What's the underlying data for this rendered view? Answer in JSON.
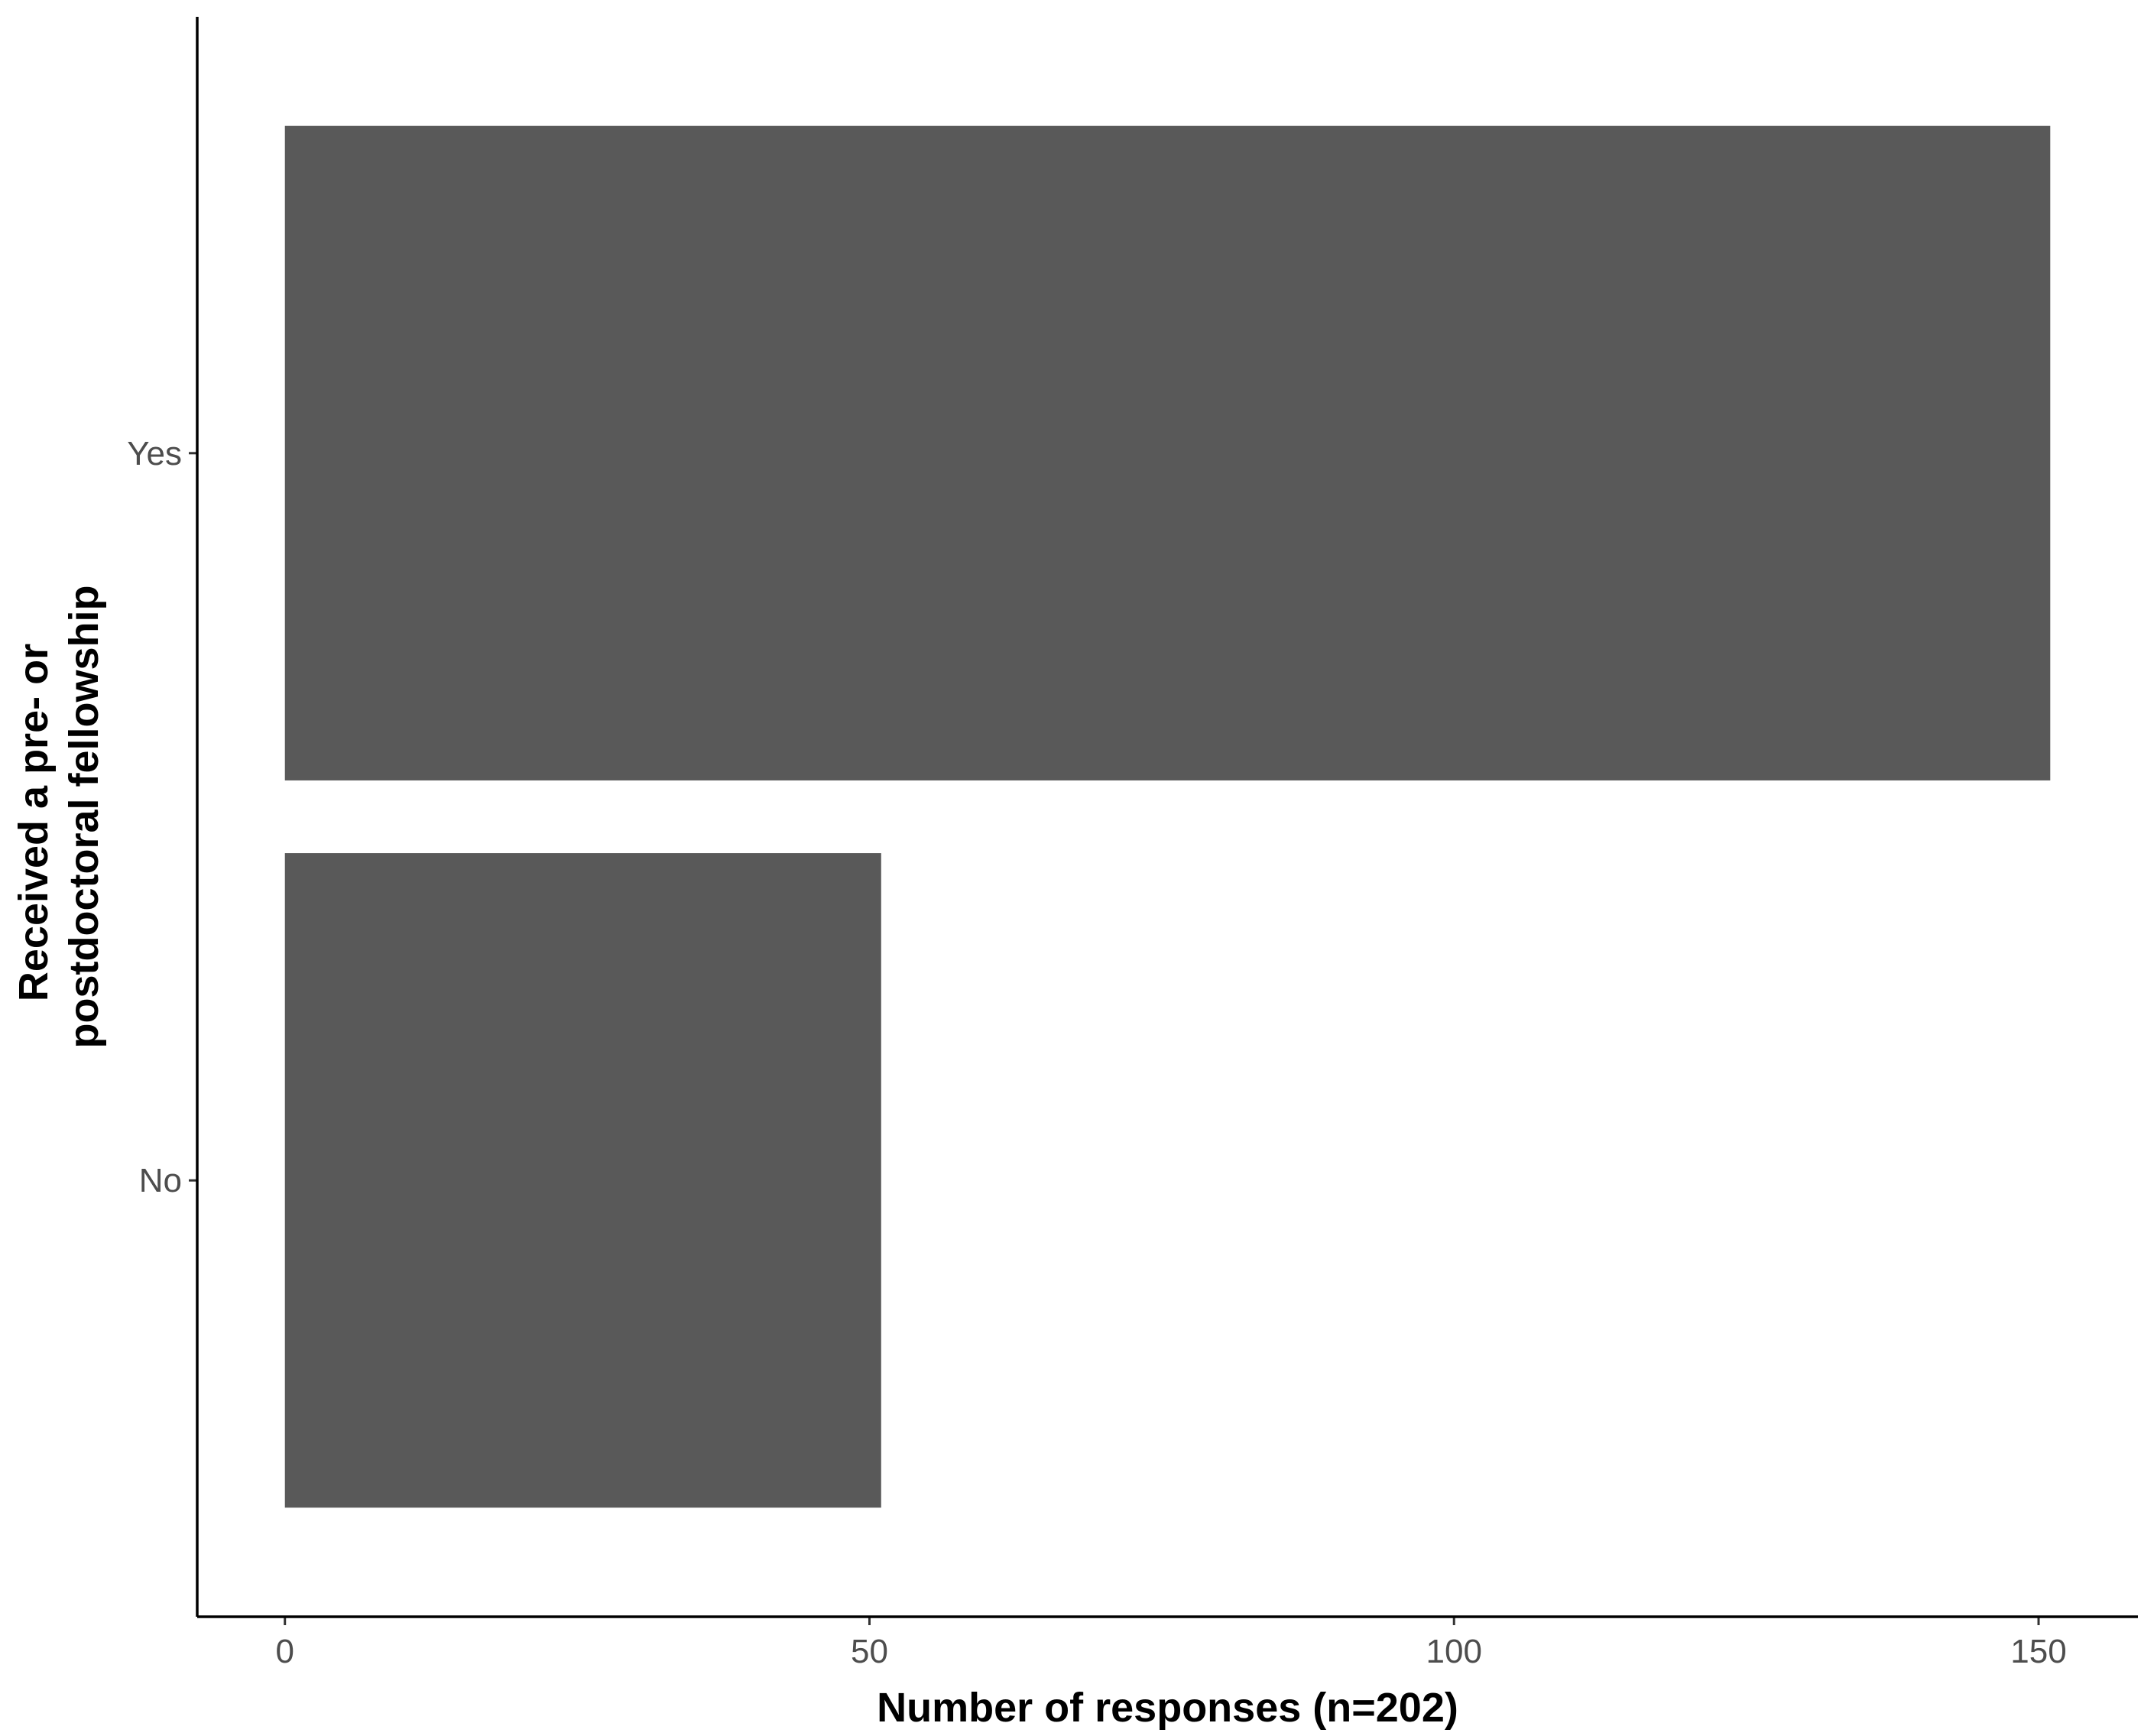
{
  "chart_data": {
    "type": "bar",
    "orientation": "horizontal",
    "categories": [
      "No",
      "Yes"
    ],
    "values": [
      51,
      151
    ],
    "title": "",
    "xlabel": "Number of responses (n=202)",
    "ylabel": [
      "Received a pre- or",
      "postdoctoral fellowship"
    ],
    "xlim": [
      -7.5,
      158.5
    ],
    "xticks": [
      0,
      50,
      100,
      150
    ],
    "grid": false,
    "legend": "none",
    "bar_color": "#595959"
  }
}
